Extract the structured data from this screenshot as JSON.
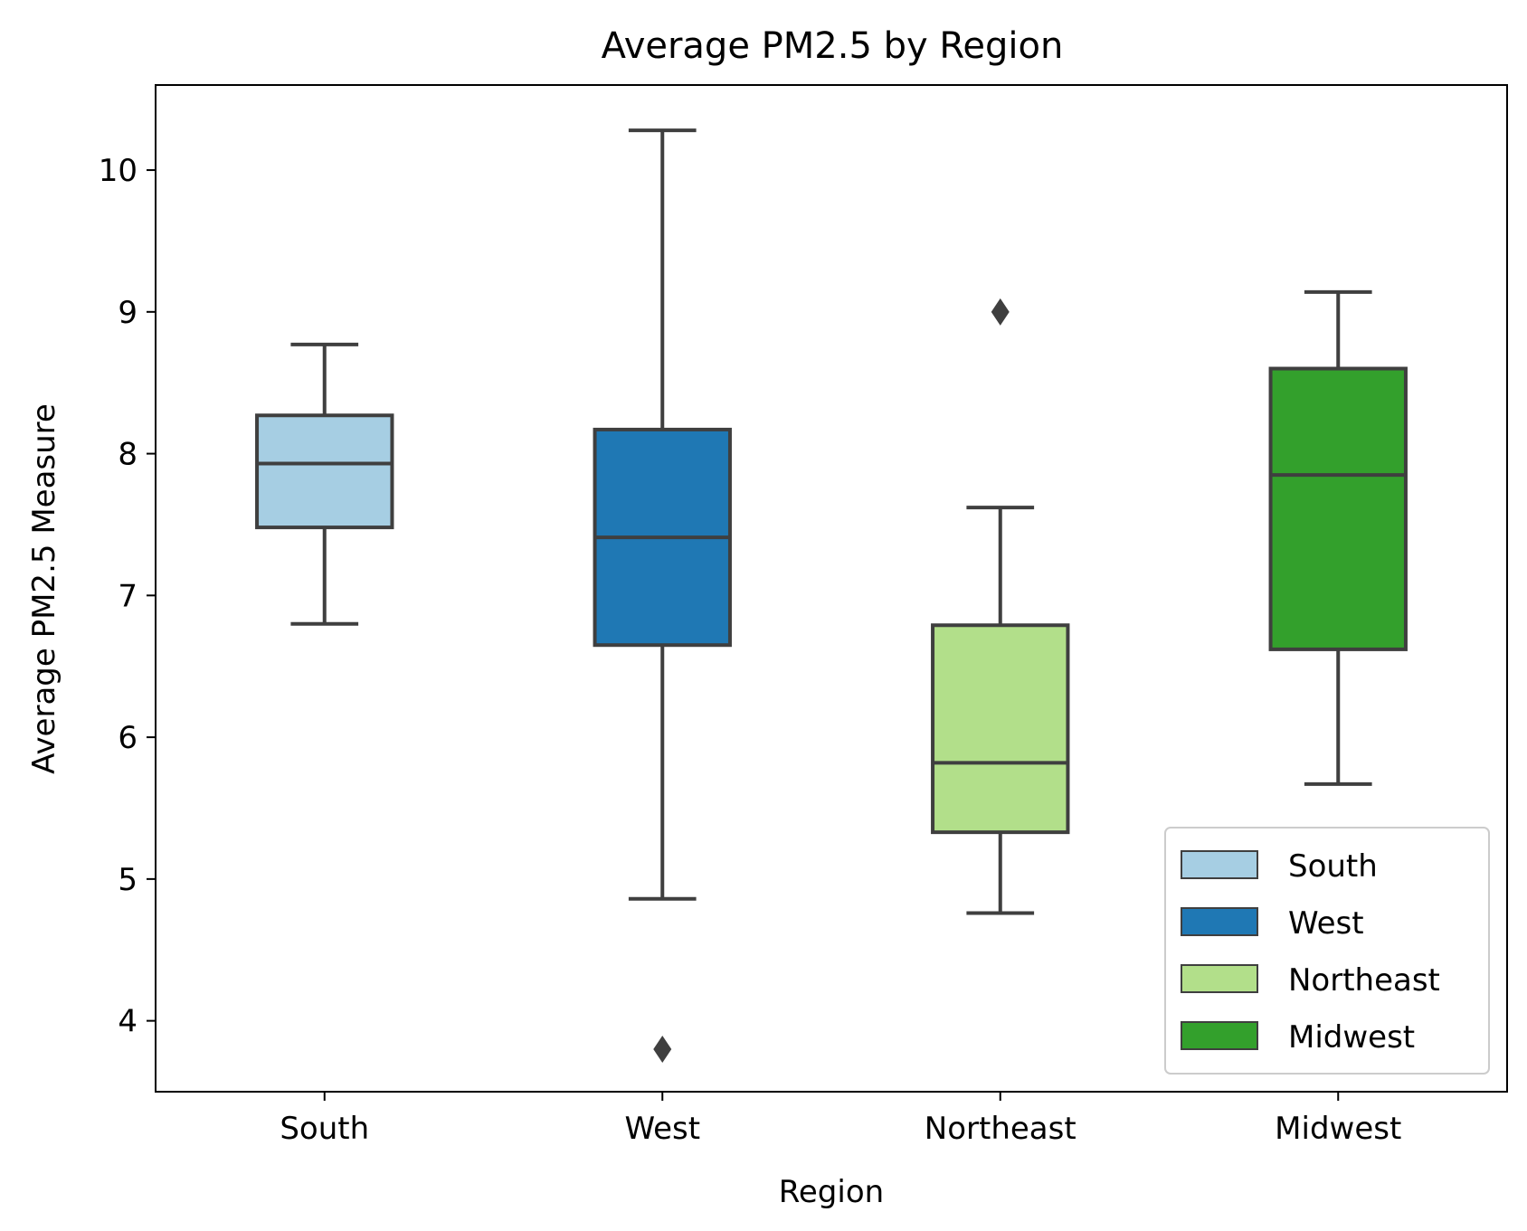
{
  "chart_data": {
    "type": "box",
    "title": "Average PM2.5 by Region",
    "xlabel": "Region",
    "ylabel": "Average PM2.5 Measure",
    "ylim": [
      3.5,
      10.6
    ],
    "yticks": [
      4,
      5,
      6,
      7,
      8,
      9,
      10
    ],
    "categories": [
      "South",
      "West",
      "Northeast",
      "Midwest"
    ],
    "boxes": [
      {
        "category": "South",
        "whisker_low": 6.8,
        "q1": 7.48,
        "median": 7.93,
        "q3": 8.27,
        "whisker_high": 8.77,
        "outliers": [],
        "color": "#a6cee3"
      },
      {
        "category": "West",
        "whisker_low": 4.86,
        "q1": 6.65,
        "median": 7.41,
        "q3": 8.17,
        "whisker_high": 10.28,
        "outliers": [
          3.8
        ],
        "color": "#1f78b4"
      },
      {
        "category": "Northeast",
        "whisker_low": 4.76,
        "q1": 5.33,
        "median": 5.82,
        "q3": 6.79,
        "whisker_high": 7.62,
        "outliers": [
          9.0
        ],
        "color": "#b2df8a"
      },
      {
        "category": "Midwest",
        "whisker_low": 5.67,
        "q1": 6.62,
        "median": 7.85,
        "q3": 8.6,
        "whisker_high": 9.14,
        "outliers": [],
        "color": "#33a02c"
      }
    ],
    "legend": {
      "position": "lower-right",
      "entries": [
        {
          "label": "South",
          "color": "#a6cee3"
        },
        {
          "label": "West",
          "color": "#1f78b4"
        },
        {
          "label": "Northeast",
          "color": "#b2df8a"
        },
        {
          "label": "Midwest",
          "color": "#33a02c"
        }
      ]
    },
    "grid": false
  }
}
